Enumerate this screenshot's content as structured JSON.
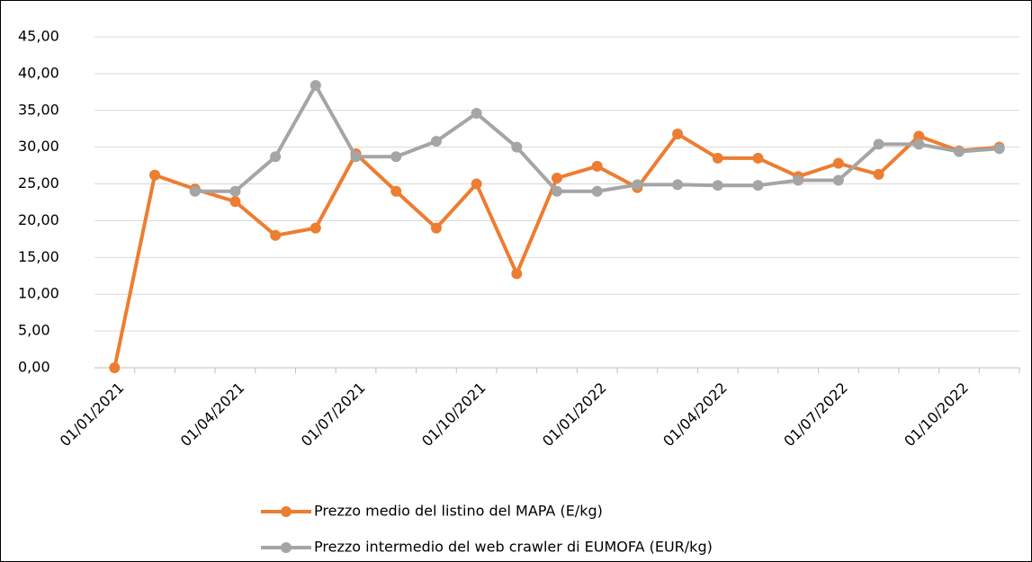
{
  "chart_data": {
    "type": "line",
    "categories": [
      "01/01/2021",
      null,
      null,
      "01/04/2021",
      null,
      null,
      "01/07/2021",
      null,
      null,
      "01/10/2021",
      null,
      null,
      "01/01/2022",
      null,
      null,
      "01/04/2022",
      null,
      null,
      "01/07/2022",
      null,
      null,
      "01/10/2022",
      null
    ],
    "series": [
      {
        "name": "Prezzo medio del listino del MAPA (E/kg)",
        "color": "#ed7d31",
        "values": [
          0,
          26.2,
          24.3,
          22.6,
          18.0,
          19.0,
          29.1,
          24.0,
          19.0,
          25.0,
          12.8,
          25.8,
          27.4,
          24.5,
          31.8,
          28.5,
          28.5,
          26.0,
          27.8,
          26.3,
          31.5,
          29.5,
          30.0
        ]
      },
      {
        "name": "Prezzo intermedio del web crawler di EUMOFA (EUR/kg)",
        "color": "#a5a5a5",
        "values": [
          null,
          null,
          24.0,
          24.0,
          28.7,
          38.4,
          28.7,
          28.7,
          30.8,
          34.6,
          30.0,
          24.0,
          24.0,
          24.9,
          24.9,
          24.8,
          24.8,
          25.5,
          25.5,
          30.4,
          30.4,
          29.4,
          29.8
        ]
      }
    ],
    "ylim": [
      0,
      45
    ],
    "yticks": [
      {
        "value": 0,
        "label": "0,00"
      },
      {
        "value": 5,
        "label": "5,00"
      },
      {
        "value": 10,
        "label": "10,00"
      },
      {
        "value": 15,
        "label": "15,00"
      },
      {
        "value": 20,
        "label": "20,00"
      },
      {
        "value": 25,
        "label": "25,00"
      },
      {
        "value": 30,
        "label": "30,00"
      },
      {
        "value": 35,
        "label": "35,00"
      },
      {
        "value": 40,
        "label": "40,00"
      },
      {
        "value": 45,
        "label": "45,00"
      }
    ],
    "grid": true,
    "legend": "bottom"
  }
}
